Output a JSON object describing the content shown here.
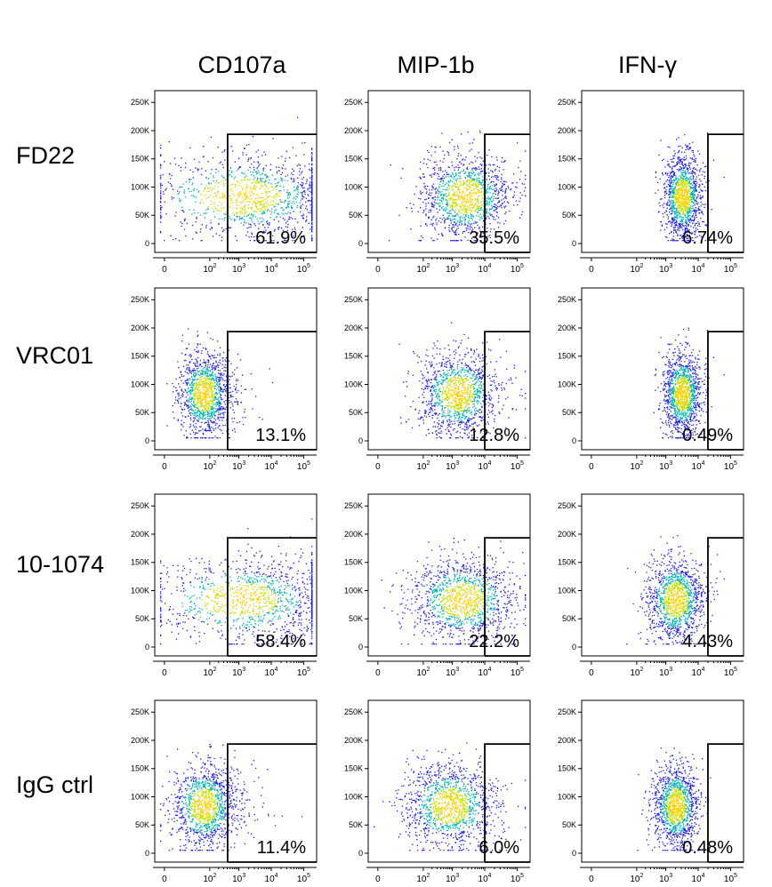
{
  "columns": [
    "CD107a",
    "MIP-1b",
    "IFN-γ"
  ],
  "rows": [
    "FD22",
    "VRC01",
    "10-1074",
    "IgG ctrl"
  ],
  "axes": {
    "y_ticks": [
      "0",
      "50K",
      "100K",
      "150K",
      "200K",
      "250K"
    ],
    "x_ticks": [
      {
        "base": "0",
        "exp": ""
      },
      {
        "base": "10",
        "exp": "2"
      },
      {
        "base": "10",
        "exp": "3"
      },
      {
        "base": "10",
        "exp": "4"
      },
      {
        "base": "10",
        "exp": "5"
      }
    ]
  },
  "colors": {
    "density_low": "#1a1aff",
    "density_mid": "#00b3b3",
    "density_high": "#c8e000",
    "density_peak": "#ffd000",
    "gate": "#000000"
  },
  "chart_data": {
    "type": "scatter",
    "plot_kind": "flow cytometry pseudocolor density plots with gate",
    "x_scale": "biexponential (log-like)",
    "ylim": [
      0,
      262144
    ],
    "panels": [
      {
        "row": "FD22",
        "column": "CD107a",
        "gate_percent": "61.9%"
      },
      {
        "row": "FD22",
        "column": "MIP-1b",
        "gate_percent": "35.5%"
      },
      {
        "row": "FD22",
        "column": "IFN-γ",
        "gate_percent": "6.74%"
      },
      {
        "row": "VRC01",
        "column": "CD107a",
        "gate_percent": "13.1%"
      },
      {
        "row": "VRC01",
        "column": "MIP-1b",
        "gate_percent": "12.8%"
      },
      {
        "row": "VRC01",
        "column": "IFN-γ",
        "gate_percent": "0.49%"
      },
      {
        "row": "10-1074",
        "column": "CD107a",
        "gate_percent": "58.4%"
      },
      {
        "row": "10-1074",
        "column": "MIP-1b",
        "gate_percent": "22.2%"
      },
      {
        "row": "10-1074",
        "column": "IFN-γ",
        "gate_percent": "4.43%"
      },
      {
        "row": "IgG ctrl",
        "column": "CD107a",
        "gate_percent": "11.4%"
      },
      {
        "row": "IgG ctrl",
        "column": "MIP-1b",
        "gate_percent": "6.0%"
      },
      {
        "row": "IgG ctrl",
        "column": "IFN-γ",
        "gate_percent": "0.48%"
      }
    ]
  }
}
